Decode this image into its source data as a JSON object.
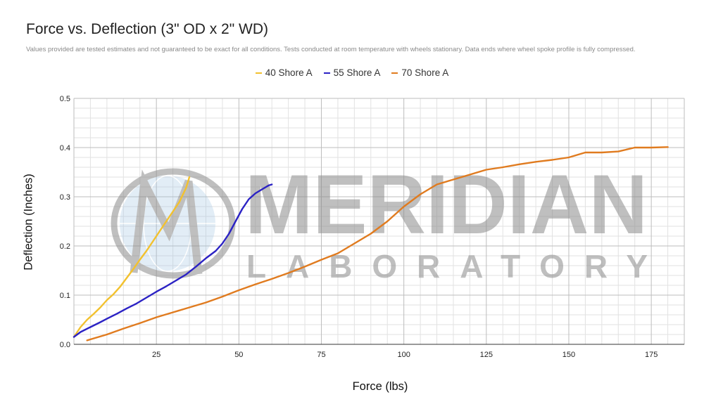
{
  "chart_data": {
    "type": "line",
    "title": "Force vs. Deflection (3\" OD x 2\" WD)",
    "subtitle": "Values provided are tested estimates and not guaranteed to be exact for all conditions. Tests conducted at room temperature with wheels stationary. Data ends where wheel spoke profile is fully compressed.",
    "xlabel": "Force (lbs)",
    "ylabel": "Deflection (Inches)",
    "xlim": [
      0,
      185
    ],
    "ylim": [
      0,
      0.5
    ],
    "xticks": [
      25,
      50,
      75,
      100,
      125,
      150,
      175
    ],
    "xtick_labels": [
      "25",
      "50",
      "75",
      "100",
      "125",
      "150",
      "175"
    ],
    "yticks": [
      0,
      0.1,
      0.2,
      0.3,
      0.4,
      0.5
    ],
    "ytick_labels": [
      "0.0",
      "0.1",
      "0.2",
      "0.3",
      "0.4",
      "0.5"
    ],
    "grid": true,
    "legend_position": "top-center",
    "series": [
      {
        "name": "40 Shore A",
        "color": "#f2c12e",
        "x": [
          0,
          2,
          4,
          6,
          8,
          10,
          12,
          14,
          16,
          18,
          20,
          22,
          24,
          26,
          28,
          30,
          32,
          34,
          35
        ],
        "y": [
          0.015,
          0.035,
          0.05,
          0.062,
          0.075,
          0.09,
          0.102,
          0.117,
          0.135,
          0.153,
          0.172,
          0.19,
          0.21,
          0.23,
          0.25,
          0.27,
          0.29,
          0.318,
          0.34
        ]
      },
      {
        "name": "55 Shore A",
        "color": "#2b22c4",
        "x": [
          0,
          2,
          5,
          8,
          10,
          13,
          16,
          19,
          22,
          25,
          28,
          31,
          34,
          37,
          40,
          43,
          45,
          47,
          49,
          51,
          53,
          55,
          57,
          59,
          60
        ],
        "y": [
          0.015,
          0.025,
          0.035,
          0.045,
          0.052,
          0.062,
          0.073,
          0.083,
          0.095,
          0.107,
          0.118,
          0.13,
          0.142,
          0.158,
          0.175,
          0.19,
          0.205,
          0.225,
          0.25,
          0.275,
          0.295,
          0.307,
          0.315,
          0.323,
          0.325
        ]
      },
      {
        "name": "70 Shore A",
        "color": "#e07b1f",
        "x": [
          4,
          10,
          15,
          20,
          25,
          30,
          35,
          40,
          45,
          50,
          55,
          60,
          65,
          70,
          75,
          80,
          85,
          90,
          95,
          100,
          105,
          110,
          115,
          120,
          125,
          130,
          135,
          140,
          145,
          150,
          155,
          160,
          165,
          170,
          175,
          180
        ],
        "y": [
          0.008,
          0.02,
          0.032,
          0.043,
          0.055,
          0.065,
          0.075,
          0.085,
          0.097,
          0.11,
          0.122,
          0.133,
          0.145,
          0.158,
          0.172,
          0.185,
          0.205,
          0.225,
          0.25,
          0.28,
          0.305,
          0.325,
          0.335,
          0.345,
          0.355,
          0.36,
          0.366,
          0.371,
          0.375,
          0.38,
          0.39,
          0.39,
          0.392,
          0.4,
          0.4,
          0.401
        ]
      }
    ]
  },
  "watermark": {
    "brand": "MERIDIAN",
    "sub": "LABORATORY",
    "color": "#8c8c8c",
    "globe_color": "#9fc2e0"
  }
}
